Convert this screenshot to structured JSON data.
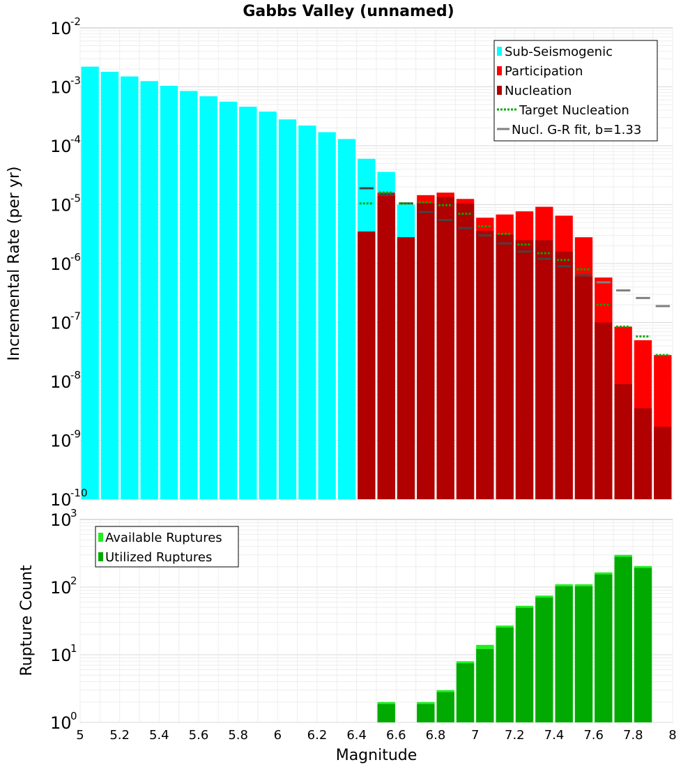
{
  "chart_data": [
    {
      "type": "bar",
      "title": "Gabbs Valley (unnamed)",
      "xlabel": "",
      "ylabel": "Incremental Rate (per yr)",
      "xlim": [
        5,
        8
      ],
      "ylim_exp": [
        -10,
        -2
      ],
      "yscale": "log",
      "bin_width": 0.1,
      "y_tick_labels": [
        {
          "exp": -10,
          "base": "10",
          "sup": "-10"
        },
        {
          "exp": -9,
          "base": "10",
          "sup": "-9"
        },
        {
          "exp": -8,
          "base": "10",
          "sup": "-8"
        },
        {
          "exp": -7,
          "base": "10",
          "sup": "-7"
        },
        {
          "exp": -6,
          "base": "10",
          "sup": "-6"
        },
        {
          "exp": -5,
          "base": "10",
          "sup": "-5"
        },
        {
          "exp": -4,
          "base": "10",
          "sup": "-4"
        },
        {
          "exp": -3,
          "base": "10",
          "sup": "-3"
        },
        {
          "exp": -2,
          "base": "10",
          "sup": "-2"
        }
      ],
      "legend": [
        {
          "label": "Sub-Seismogenic",
          "color": "#00ffff",
          "kind": "box"
        },
        {
          "label": "Participation",
          "color": "#ff0000",
          "kind": "box"
        },
        {
          "label": "Nucleation",
          "color": "#b00000",
          "kind": "box"
        },
        {
          "label": "Target Nucleation",
          "color": "#00aa00",
          "kind": "dotted"
        },
        {
          "label": "Nucl. G-R fit, b=1.33",
          "color": "#808080",
          "kind": "line"
        }
      ],
      "series": [
        {
          "name": "Sub-Seismogenic",
          "color": "#00ffff",
          "x": [
            5.05,
            5.15,
            5.25,
            5.35,
            5.45,
            5.55,
            5.65,
            5.75,
            5.85,
            5.95,
            6.05,
            6.15,
            6.25,
            6.35,
            6.45,
            6.55,
            6.65
          ],
          "values": [
            0.0022,
            0.0018,
            0.0015,
            0.00125,
            0.00104,
            0.00085,
            0.00069,
            0.00056,
            0.00046,
            0.00038,
            0.00028,
            0.00022,
            0.00017,
            0.00013,
            6e-05,
            3.6e-05,
            1e-05
          ]
        },
        {
          "name": "Participation",
          "color": "#ff0000",
          "x": [
            6.55,
            6.75,
            6.85,
            6.95,
            7.05,
            7.15,
            7.25,
            7.35,
            7.45,
            7.55,
            7.65,
            7.75,
            7.85,
            7.95
          ],
          "values": [
            1.6e-05,
            1.45e-05,
            1.6e-05,
            1.25e-05,
            6e-06,
            6.8e-06,
            7.7e-06,
            9.2e-06,
            6.5e-06,
            2.8e-06,
            5.8e-07,
            8.5e-08,
            5e-08,
            2.8e-08
          ]
        },
        {
          "name": "Nucleation",
          "color": "#b00000",
          "x": [
            6.45,
            6.55,
            6.65,
            6.75,
            6.85,
            6.95,
            7.05,
            7.15,
            7.25,
            7.35,
            7.45,
            7.55,
            7.65,
            7.75,
            7.85,
            7.95
          ],
          "values": [
            3.5e-06,
            1.4e-05,
            2.8e-06,
            1.05e-05,
            1.35e-05,
            1.05e-05,
            3.6e-06,
            3.1e-06,
            2.5e-06,
            2.5e-06,
            1.6e-06,
            6e-07,
            1e-07,
            9e-09,
            3.5e-09,
            1.7e-09
          ]
        },
        {
          "name": "Target Nucleation",
          "color": "#00aa00",
          "x": [
            6.45,
            6.55,
            6.65,
            6.75,
            6.85,
            6.95,
            7.05,
            7.15,
            7.25,
            7.35,
            7.45,
            7.55,
            7.65,
            7.75,
            7.85,
            7.95
          ],
          "values": [
            1.05e-05,
            1.6e-05,
            1.05e-05,
            1.1e-05,
            9.8e-06,
            7e-06,
            4.3e-06,
            3.2e-06,
            2.1e-06,
            1.5e-06,
            1.15e-06,
            8e-07,
            2e-07,
            8.5e-08,
            5.8e-08,
            2.8e-08
          ]
        },
        {
          "name": "Nucl. G-R fit, b=1.33",
          "color": "#808080",
          "x": [
            6.45,
            6.55,
            6.65,
            6.75,
            6.85,
            6.95,
            7.05,
            7.15,
            7.25,
            7.35,
            7.45,
            7.55,
            7.65,
            7.75,
            7.85,
            7.95
          ],
          "values": [
            1.9e-05,
            1.5e-05,
            1.05e-05,
            7.5e-06,
            5.5e-06,
            4e-06,
            3e-06,
            2.2e-06,
            1.6e-06,
            1.2e-06,
            9e-07,
            6.3e-07,
            4.8e-07,
            3.5e-07,
            2.6e-07,
            1.9e-07
          ]
        }
      ]
    },
    {
      "type": "bar",
      "title": "",
      "xlabel": "Magnitude",
      "ylabel": "Rupture Count",
      "xlim": [
        5,
        8
      ],
      "ylim_exp": [
        0,
        3
      ],
      "yscale": "log",
      "bin_width": 0.1,
      "x_tick_labels": [
        "5",
        "5.2",
        "5.4",
        "5.6",
        "5.8",
        "6",
        "6.2",
        "6.4",
        "6.6",
        "6.8",
        "7",
        "7.2",
        "7.4",
        "7.6",
        "7.8",
        "8"
      ],
      "x_tick_values": [
        5,
        5.2,
        5.4,
        5.6,
        5.8,
        6,
        6.2,
        6.4,
        6.6,
        6.8,
        7,
        7.2,
        7.4,
        7.6,
        7.8,
        8
      ],
      "y_tick_labels": [
        {
          "exp": 0,
          "base": "10",
          "sup": "0"
        },
        {
          "exp": 1,
          "base": "10",
          "sup": "1"
        },
        {
          "exp": 2,
          "base": "10",
          "sup": "2"
        },
        {
          "exp": 3,
          "base": "10",
          "sup": "3"
        }
      ],
      "legend": [
        {
          "label": "Available Ruptures",
          "color": "#22ee22",
          "kind": "box"
        },
        {
          "label": "Utilized Ruptures",
          "color": "#00aa00",
          "kind": "box"
        }
      ],
      "series": [
        {
          "name": "Available Ruptures",
          "color": "#22ee22",
          "x": [
            6.55,
            6.75,
            6.85,
            6.95,
            7.05,
            7.15,
            7.25,
            7.35,
            7.45,
            7.55,
            7.65,
            7.75,
            7.85,
            7.95
          ],
          "values": [
            2,
            2,
            3,
            8,
            14,
            27,
            53,
            75,
            110,
            110,
            165,
            300,
            205,
            1
          ]
        },
        {
          "name": "Utilized Ruptures",
          "color": "#00aa00",
          "x": [
            6.55,
            6.75,
            6.85,
            6.95,
            7.05,
            7.15,
            7.25,
            7.35,
            7.45,
            7.55,
            7.65,
            7.75,
            7.85,
            7.95
          ],
          "values": [
            2,
            2,
            3,
            8,
            13,
            27,
            53,
            75,
            110,
            110,
            165,
            300,
            205,
            1
          ]
        }
      ]
    }
  ]
}
